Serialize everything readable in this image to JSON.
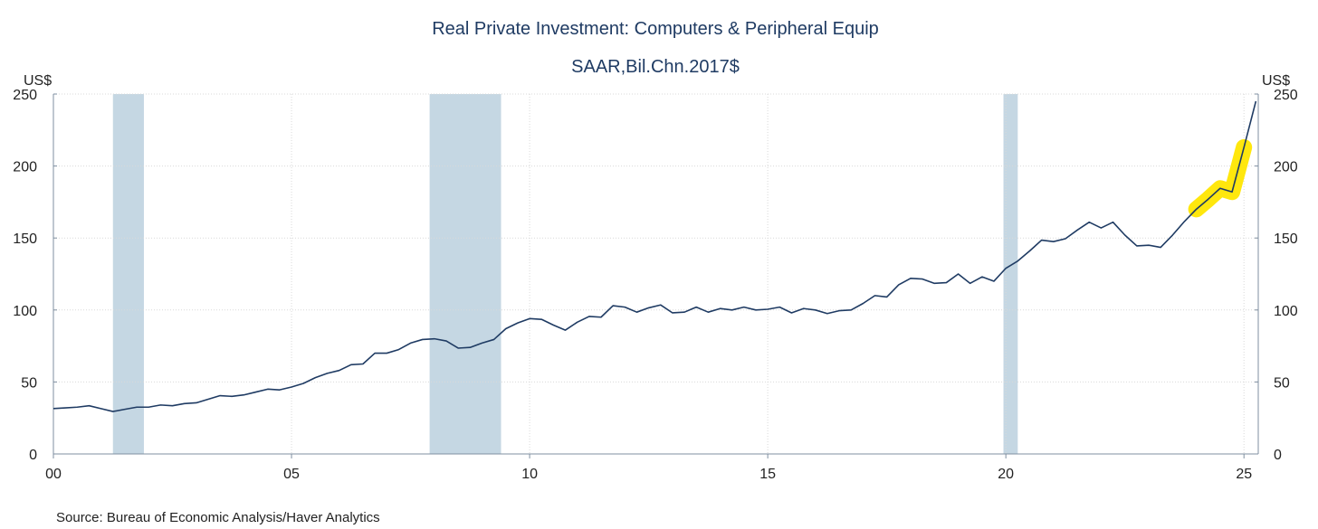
{
  "colors": {
    "line": "#1f3b63",
    "recession": "#c5d7e3",
    "highlight": "#ffe600",
    "title": "#1f3b63"
  },
  "chart_data": {
    "type": "line",
    "title": "Real Private Investment: Computers & Peripheral Equip",
    "subtitle": "SAAR,Bil.Chn.2017$",
    "ylabel_left": "US$",
    "ylabel_right": "US$",
    "source": "Source:  Bureau of Economic Analysis/Haver Analytics",
    "xlim": [
      2000.0,
      2025.3
    ],
    "ylim": [
      0,
      250
    ],
    "yticks": [
      0,
      50,
      100,
      150,
      200,
      250
    ],
    "xticks": [
      {
        "value": 2000,
        "label": "00"
      },
      {
        "value": 2005,
        "label": "05"
      },
      {
        "value": 2010,
        "label": "10"
      },
      {
        "value": 2015,
        "label": "15"
      },
      {
        "value": 2020,
        "label": "20"
      },
      {
        "value": 2025,
        "label": "25"
      }
    ],
    "grid": true,
    "recessions": [
      {
        "start": 2001.25,
        "end": 2001.9
      },
      {
        "start": 2007.9,
        "end": 2009.4
      },
      {
        "start": 2019.95,
        "end": 2020.25
      }
    ],
    "highlight_range": {
      "start": 2024.0,
      "end": 2025.2
    },
    "series": [
      {
        "name": "Real Private Investment: Computers & Peripheral Equip",
        "x": [
          2000.0,
          2000.25,
          2000.5,
          2000.75,
          2001.0,
          2001.25,
          2001.5,
          2001.75,
          2002.0,
          2002.25,
          2002.5,
          2002.75,
          2003.0,
          2003.25,
          2003.5,
          2003.75,
          2004.0,
          2004.25,
          2004.5,
          2004.75,
          2005.0,
          2005.25,
          2005.5,
          2005.75,
          2006.0,
          2006.25,
          2006.5,
          2006.75,
          2007.0,
          2007.25,
          2007.5,
          2007.75,
          2008.0,
          2008.25,
          2008.5,
          2008.75,
          2009.0,
          2009.25,
          2009.5,
          2009.75,
          2010.0,
          2010.25,
          2010.5,
          2010.75,
          2011.0,
          2011.25,
          2011.5,
          2011.75,
          2012.0,
          2012.25,
          2012.5,
          2012.75,
          2013.0,
          2013.25,
          2013.5,
          2013.75,
          2014.0,
          2014.25,
          2014.5,
          2014.75,
          2015.0,
          2015.25,
          2015.5,
          2015.75,
          2016.0,
          2016.25,
          2016.5,
          2016.75,
          2017.0,
          2017.25,
          2017.5,
          2017.75,
          2018.0,
          2018.25,
          2018.5,
          2018.75,
          2019.0,
          2019.25,
          2019.5,
          2019.75,
          2020.0,
          2020.25,
          2020.5,
          2020.75,
          2021.0,
          2021.25,
          2021.5,
          2021.75,
          2022.0,
          2022.25,
          2022.5,
          2022.75,
          2023.0,
          2023.25,
          2023.5,
          2023.75,
          2024.0,
          2024.25,
          2024.5,
          2024.75,
          2025.0,
          2025.25
        ],
        "values": [
          31.5,
          32,
          32.5,
          33.5,
          31.5,
          29.5,
          31,
          32.5,
          32.5,
          34,
          33.5,
          35,
          35.5,
          38,
          40.5,
          40,
          41,
          43,
          45,
          44.5,
          46.5,
          49,
          53,
          56,
          58,
          62,
          62.5,
          70,
          70,
          72.5,
          77,
          79.5,
          80,
          78.5,
          73.5,
          74,
          77,
          79.5,
          87,
          91,
          94,
          93.5,
          89.5,
          86,
          91.5,
          95.5,
          95,
          103,
          102,
          98.5,
          101.5,
          103.5,
          98,
          98.5,
          102,
          98.5,
          101,
          100,
          102,
          100,
          100.5,
          102,
          98,
          101,
          100,
          97.5,
          99.5,
          100,
          104.5,
          110,
          109,
          117.5,
          122,
          121.5,
          118.5,
          119,
          125,
          118.5,
          123,
          120,
          129,
          134,
          141,
          148.5,
          147.5,
          149.5,
          155.5,
          161,
          157,
          161,
          152,
          144.5,
          145,
          143.5,
          152,
          161.5,
          170,
          177,
          184.5,
          182,
          213,
          245
        ]
      }
    ]
  }
}
